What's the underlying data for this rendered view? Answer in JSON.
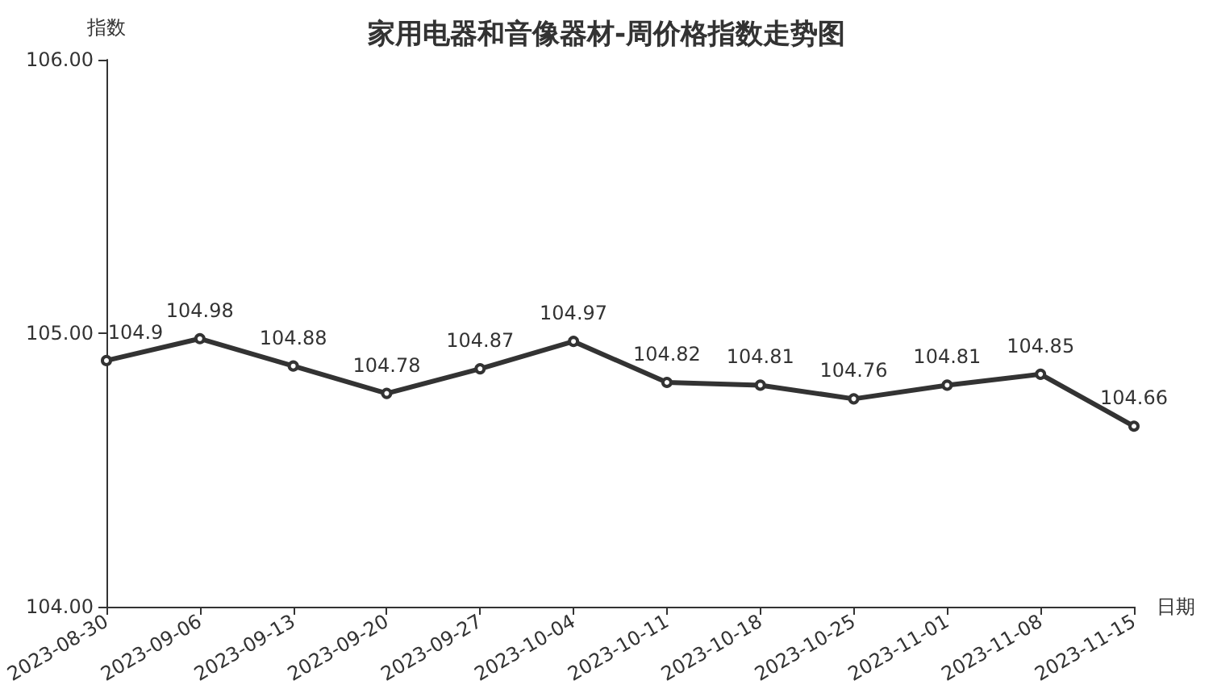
{
  "chart_data": {
    "type": "line",
    "title": "家用电器和音像器材-周价格指数走势图",
    "ylabel": "指数",
    "xlabel": "日期",
    "categories": [
      "2023-08-30",
      "2023-09-06",
      "2023-09-13",
      "2023-09-20",
      "2023-09-27",
      "2023-10-04",
      "2023-10-11",
      "2023-10-18",
      "2023-10-25",
      "2023-11-01",
      "2023-11-08",
      "2023-11-15"
    ],
    "series": [
      {
        "color": "#333333",
        "values": [
          104.9,
          104.98,
          104.88,
          104.78,
          104.87,
          104.97,
          104.82,
          104.81,
          104.76,
          104.81,
          104.85,
          104.66
        ]
      }
    ],
    "ylim": [
      104,
      106
    ],
    "yticks": [
      {
        "value": 104,
        "label": "104.00"
      },
      {
        "value": 105,
        "label": "105.00"
      },
      {
        "value": 106,
        "label": "106.00"
      }
    ],
    "grid": false,
    "marker": "circle",
    "line_style": "solid",
    "data_labels": true
  }
}
